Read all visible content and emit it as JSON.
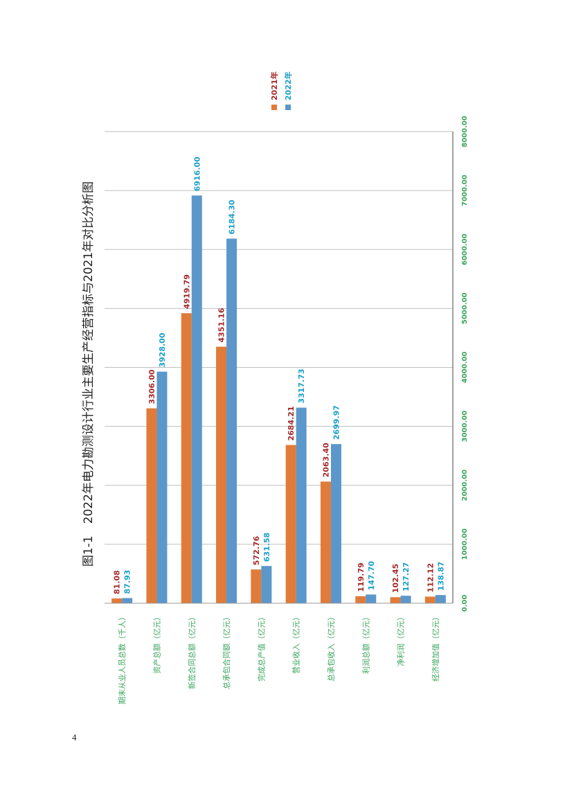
{
  "page": {
    "number": "4"
  },
  "chart_data": {
    "type": "bar",
    "title": "图1-1　2022年电力勘测设计行业主要生产经营指标与2021年对比分析图",
    "categories": [
      "期末从业人员总数（千人）",
      "资产总额（亿元）",
      "新签合同总额（亿元）",
      "总承包合同额（亿元）",
      "完成总产值（亿元）",
      "营业收入（亿元）",
      "总承包收入（亿元）",
      "利润总额（亿元）",
      "净利润（亿元）",
      "经济增加值（亿元）"
    ],
    "series": [
      {
        "name": "2021年",
        "color": "#E07B39",
        "label_color": "#A52A2A",
        "values": [
          81.08,
          3306.0,
          4919.79,
          4351.16,
          572.76,
          2684.21,
          2063.4,
          119.79,
          102.45,
          112.12
        ],
        "labels": [
          "81.08",
          "3306.00",
          "4919.79",
          "4351.16",
          "572.76",
          "2684.21",
          "2063.40",
          "119.79",
          "102.45",
          "112.12"
        ]
      },
      {
        "name": "2022年",
        "color": "#5B97CB",
        "label_color": "#1AA0C8",
        "values": [
          87.93,
          3928.0,
          6916.0,
          6184.3,
          631.58,
          3317.73,
          2699.97,
          147.7,
          127.27,
          138.87
        ],
        "labels": [
          "87.93",
          "3928.00",
          "6916.00",
          "6184.30",
          "631.58",
          "3317.73",
          "2699.97",
          "147.70",
          "127.27",
          "138.87"
        ]
      }
    ],
    "ylim": [
      0,
      8000
    ],
    "ticks": [
      "0.00",
      "1000.00",
      "2000.00",
      "3000.00",
      "4000.00",
      "5000.00",
      "6000.00",
      "7000.00",
      "8000.00"
    ],
    "tick_color": "#3BA55C",
    "category_color": "#3BA55C",
    "grid": true,
    "legend_position": "top",
    "orientation": "page rotated 90° counter-clockwise"
  }
}
